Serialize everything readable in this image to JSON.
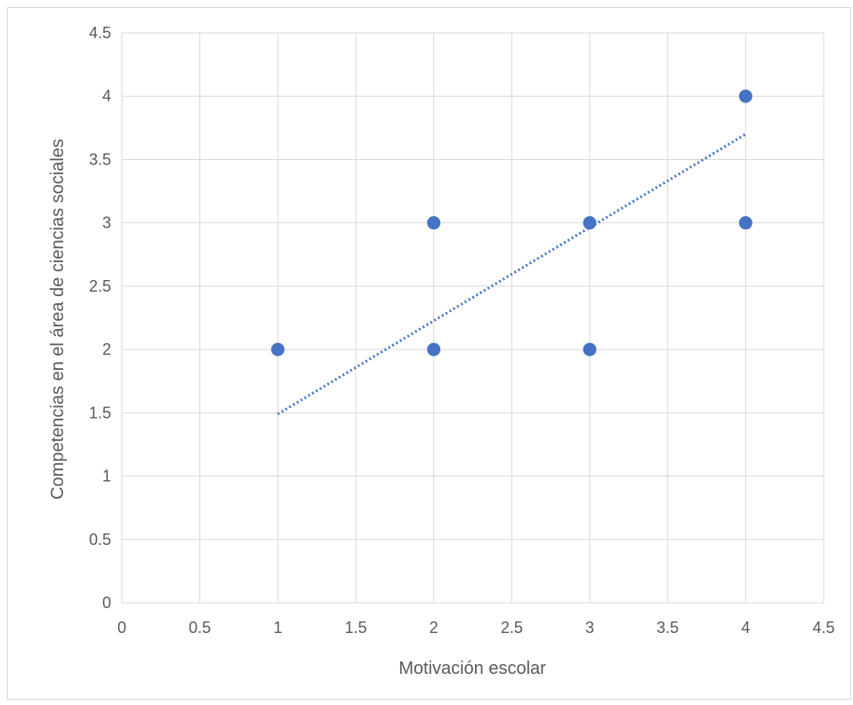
{
  "chart_data": {
    "type": "scatter",
    "xlabel": "Motivación escolar",
    "ylabel": "Competencias en el área de ciencias sociales",
    "xlim": [
      0,
      4.5
    ],
    "ylim": [
      0,
      4.5
    ],
    "x_ticks": [
      "0",
      "0.5",
      "1",
      "1.5",
      "2",
      "2.5",
      "3",
      "3.5",
      "4",
      "4.5"
    ],
    "y_ticks": [
      "0",
      "0.5",
      "1",
      "1.5",
      "2",
      "2.5",
      "3",
      "3.5",
      "4",
      "4.5"
    ],
    "grid": true,
    "legend": "none",
    "series": [
      {
        "points": [
          {
            "x": 1,
            "y": 2
          },
          {
            "x": 2,
            "y": 3
          },
          {
            "x": 2,
            "y": 2
          },
          {
            "x": 3,
            "y": 3
          },
          {
            "x": 3,
            "y": 2
          },
          {
            "x": 4,
            "y": 4
          },
          {
            "x": 4,
            "y": 3
          }
        ]
      }
    ],
    "trendline": {
      "type": "linear",
      "style": "dotted",
      "x_start": 1,
      "y_start": 1.49,
      "x_end": 4,
      "y_end": 3.7
    },
    "colors": {
      "marker": "#4472C4",
      "trendline": "#4472C4",
      "grid": "#d9d9d9",
      "text": "#595959"
    }
  }
}
